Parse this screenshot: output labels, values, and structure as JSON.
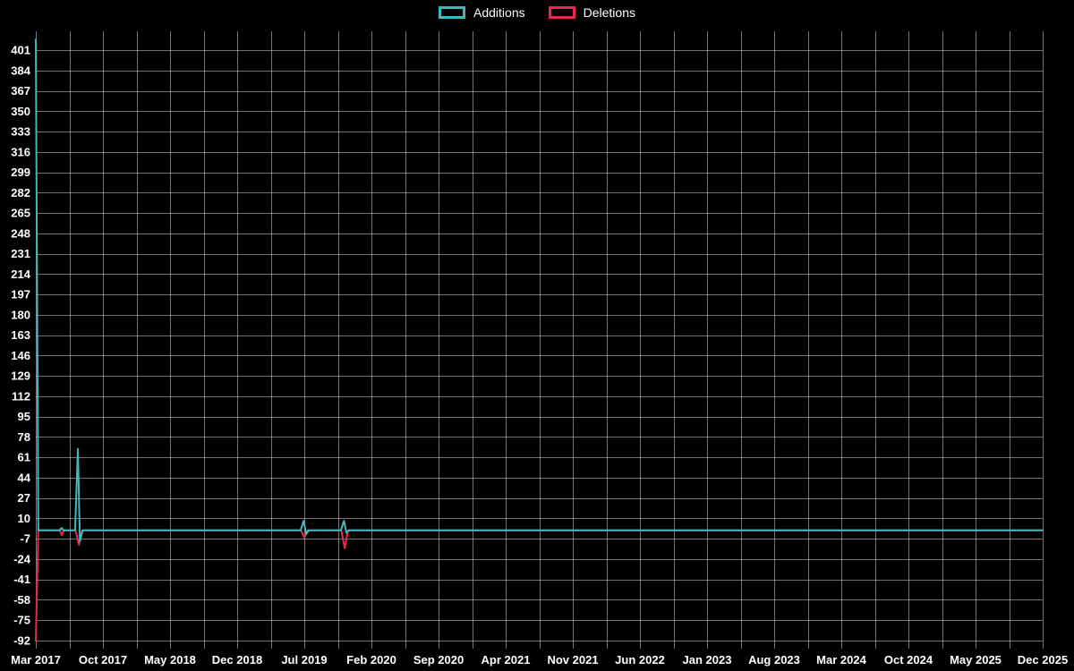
{
  "colors": {
    "background": "#000000",
    "grid": "rgba(255,255,255,0.45)",
    "text": "#ffffff",
    "additions": "#41b8be",
    "deletions": "#e62a4f"
  },
  "legend": {
    "items": [
      {
        "label": "Additions",
        "color": "#41b8be"
      },
      {
        "label": "Deletions",
        "color": "#e62a4f"
      }
    ]
  },
  "chart_data": {
    "type": "line",
    "title": "",
    "xlabel": "",
    "ylabel": "",
    "grid": true,
    "legend_position": "top-center",
    "y_axis": {
      "min": -92,
      "max": 401,
      "step": 17,
      "ticks": [
        401,
        384,
        367,
        350,
        333,
        316,
        299,
        282,
        265,
        248,
        231,
        214,
        197,
        180,
        163,
        146,
        129,
        112,
        95,
        78,
        61,
        44,
        27,
        10,
        -7,
        -24,
        -41,
        -58,
        -75,
        -92
      ]
    },
    "x_axis": {
      "labels": [
        "Mar 2017",
        "Oct 2017",
        "May 2018",
        "Dec 2018",
        "Jul 2019",
        "Feb 2020",
        "Sep 2020",
        "Apr 2021",
        "Nov 2021",
        "Jun 2022",
        "Jan 2023",
        "Aug 2023",
        "Mar 2024",
        "Oct 2024",
        "May 2025",
        "Dec 2025"
      ]
    },
    "series": [
      {
        "name": "Deletions",
        "color": "#e62a4f",
        "points": [
          [
            0.0,
            -92
          ],
          [
            0.0025,
            0
          ],
          [
            0.024,
            0
          ],
          [
            0.0258,
            -4
          ],
          [
            0.0278,
            0
          ],
          [
            0.0395,
            0
          ],
          [
            0.0428,
            -12
          ],
          [
            0.046,
            0
          ],
          [
            0.2635,
            0
          ],
          [
            0.2668,
            -6
          ],
          [
            0.27,
            0
          ],
          [
            0.3035,
            0
          ],
          [
            0.3068,
            -15
          ],
          [
            0.31,
            0
          ],
          [
            1.0,
            0
          ]
        ]
      },
      {
        "name": "Additions",
        "color": "#41b8be",
        "points": [
          [
            0.0,
            410
          ],
          [
            0.0025,
            0
          ],
          [
            0.0235,
            0
          ],
          [
            0.0255,
            2
          ],
          [
            0.0275,
            0
          ],
          [
            0.039,
            0
          ],
          [
            0.0418,
            68
          ],
          [
            0.0438,
            -9
          ],
          [
            0.0465,
            0
          ],
          [
            0.263,
            0
          ],
          [
            0.266,
            8
          ],
          [
            0.2685,
            -3
          ],
          [
            0.271,
            0
          ],
          [
            0.303,
            0
          ],
          [
            0.306,
            8
          ],
          [
            0.3085,
            -2
          ],
          [
            0.311,
            0
          ],
          [
            1.0,
            0
          ]
        ]
      }
    ]
  }
}
